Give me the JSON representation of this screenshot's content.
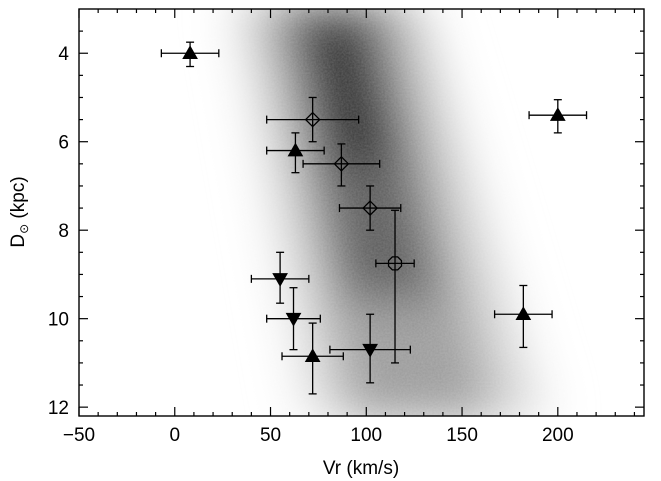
{
  "chart_data": {
    "type": "scatter",
    "background": "grayscale density map (darker = higher density), dark ridge running from Vr~80 at D=4 to Vr~130 at D=12",
    "xlabel": "Vr (km/s)",
    "ylabel": "D⊙ (kpc)",
    "ylabel_main": "D",
    "ylabel_sub": "⊙",
    "ylabel_unit": " (kpc)",
    "xlim": [
      -50,
      245
    ],
    "ylim": [
      12.2,
      3.0
    ],
    "y_inverted": true,
    "xticks": [
      -50,
      0,
      50,
      100,
      150,
      200
    ],
    "xtick_labels": [
      "−50",
      "0",
      "50",
      "100",
      "150",
      "200"
    ],
    "yticks": [
      4,
      6,
      8,
      10,
      12
    ],
    "ytick_labels": [
      "4",
      "6",
      "8",
      "10",
      "12"
    ],
    "grid": false,
    "series": [
      {
        "marker": "triangle-up-filled",
        "points": [
          {
            "x": 8,
            "y": 4.0,
            "xerr": 15,
            "yerr_lo": 0.25,
            "yerr_hi": 0.3
          },
          {
            "x": 63,
            "y": 6.2,
            "xerr": 15,
            "yerr_lo": 0.4,
            "yerr_hi": 0.5
          },
          {
            "x": 200,
            "y": 5.4,
            "xerr": 15,
            "yerr_lo": 0.35,
            "yerr_hi": 0.4
          },
          {
            "x": 182,
            "y": 9.9,
            "xerr": 15,
            "yerr_lo": 0.65,
            "yerr_hi": 0.75
          },
          {
            "x": 72,
            "y": 10.85,
            "xerr": 16,
            "yerr_lo": 0.75,
            "yerr_hi": 0.85
          }
        ]
      },
      {
        "marker": "triangle-down-filled",
        "points": [
          {
            "x": 55,
            "y": 9.1,
            "xerr": 15,
            "yerr_lo": 0.6,
            "yerr_hi": 0.55
          },
          {
            "x": 62,
            "y": 10.0,
            "xerr": 14,
            "yerr_lo": 0.7,
            "yerr_hi": 0.7
          },
          {
            "x": 102,
            "y": 10.7,
            "xerr": 21,
            "yerr_lo": 0.8,
            "yerr_hi": 0.75
          }
        ]
      },
      {
        "marker": "diamond-open",
        "points": [
          {
            "x": 72,
            "y": 5.5,
            "xerr": 24,
            "yerr_lo": 0.5,
            "yerr_hi": 0.5
          },
          {
            "x": 87,
            "y": 6.5,
            "xerr": 20,
            "yerr_lo": 0.45,
            "yerr_hi": 0.5
          },
          {
            "x": 102,
            "y": 7.5,
            "xerr": 16,
            "yerr_lo": 0.5,
            "yerr_hi": 0.5
          }
        ]
      },
      {
        "marker": "circle-open",
        "points": [
          {
            "x": 115,
            "y": 8.75,
            "xerr": 10,
            "yerr_lo": 1.2,
            "yerr_hi": 2.25
          }
        ]
      }
    ]
  }
}
